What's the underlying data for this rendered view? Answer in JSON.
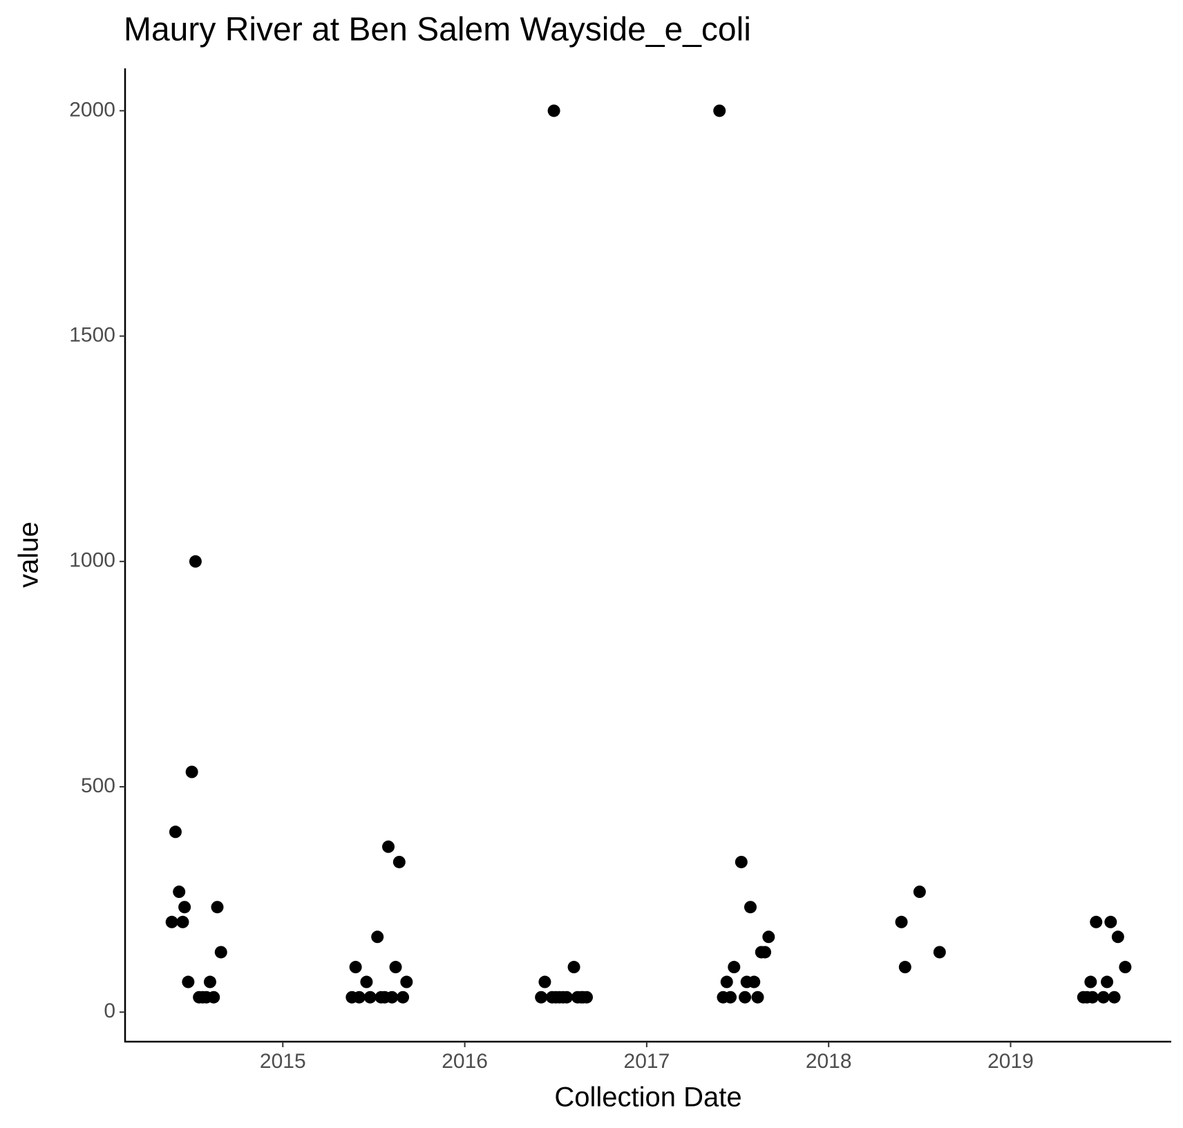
{
  "chart_data": {
    "type": "scatter",
    "title": "Maury River at Ben Salem Wayside_e_coli",
    "x_label": "Collection Date",
    "y_label": "value",
    "color": "#000000",
    "xlim": [
      2014.133,
      2019.883
    ],
    "ylim": [
      -65.5,
      2094
    ],
    "xticks": [
      2015,
      2016,
      2017,
      2018,
      2019
    ],
    "yticks": [
      0,
      500,
      1000,
      1500,
      2000
    ],
    "grid": false,
    "x": [
      2014.39,
      2014.41,
      2014.43,
      2014.45,
      2014.46,
      2014.48,
      2014.5,
      2014.52,
      2014.54,
      2014.56,
      2014.58,
      2014.6,
      2014.62,
      2014.64,
      2014.66,
      2015.38,
      2015.4,
      2015.42,
      2015.46,
      2015.48,
      2015.52,
      2015.54,
      2015.56,
      2015.58,
      2015.6,
      2015.62,
      2015.64,
      2015.66,
      2015.68,
      2016.42,
      2016.44,
      2016.48,
      2016.49,
      2016.5,
      2016.52,
      2016.54,
      2016.56,
      2016.6,
      2016.62,
      2016.64,
      2016.65,
      2016.67,
      2017.4,
      2017.42,
      2017.44,
      2017.46,
      2017.48,
      2017.52,
      2017.54,
      2017.55,
      2017.57,
      2017.59,
      2017.61,
      2017.63,
      2017.65,
      2017.67,
      2018.4,
      2018.42,
      2018.5,
      2018.61,
      2019.4,
      2019.42,
      2019.44,
      2019.45,
      2019.47,
      2019.51,
      2019.53,
      2019.55,
      2019.57,
      2019.59,
      2019.63
    ],
    "values": [
      200,
      400,
      267,
      200,
      233,
      67,
      533,
      1000,
      33,
      33,
      33,
      67,
      33,
      233,
      133,
      33,
      100,
      33,
      67,
      33,
      167,
      33,
      33,
      367,
      33,
      100,
      333,
      33,
      67,
      33,
      67,
      33,
      2000,
      33,
      33,
      33,
      33,
      100,
      33,
      33,
      33,
      33,
      2000,
      33,
      67,
      33,
      100,
      333,
      33,
      67,
      233,
      67,
      33,
      133,
      133,
      167,
      200,
      100,
      267,
      133,
      33,
      33,
      67,
      33,
      200,
      33,
      67,
      200,
      33,
      167,
      100
    ]
  }
}
